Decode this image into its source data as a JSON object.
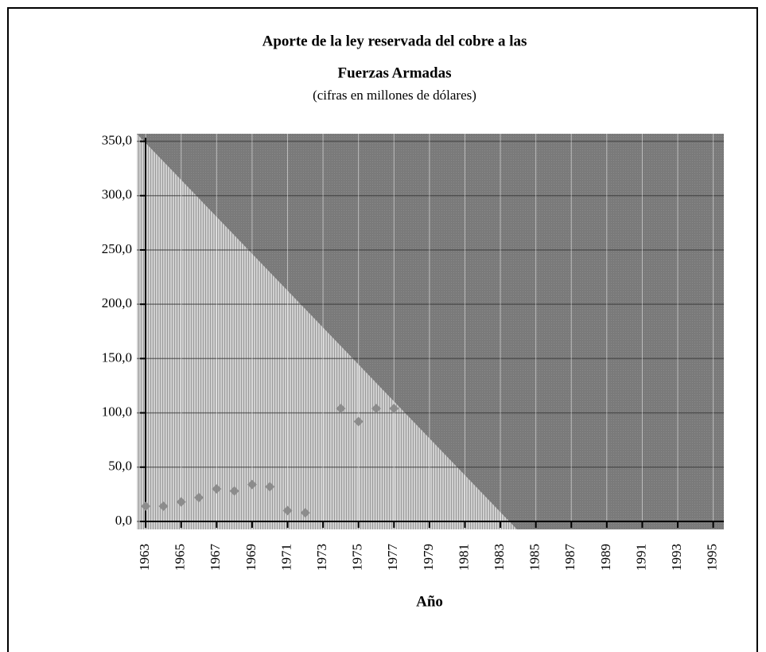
{
  "chart_data": {
    "type": "scatter",
    "title": [
      "Aporte de la ley reservada del cobre a las",
      "Fuerzas Armadas"
    ],
    "subtitle": "(cifras en millones de dólares)",
    "x_label": "Año",
    "series": [
      {
        "color": "#8c8c8c",
        "x": [
          1963,
          1964,
          1965,
          1966,
          1967,
          1968,
          1969,
          1970,
          1971,
          1972,
          1974,
          1975,
          1976,
          1977
        ],
        "values": [
          14,
          14,
          18,
          22,
          30,
          28,
          34,
          32,
          10,
          8,
          104,
          92,
          104,
          104
        ]
      }
    ],
    "xlim": [
      1962.5,
      1995.6
    ],
    "xticks": [
      1963,
      1965,
      1967,
      1969,
      1971,
      1973,
      1975,
      1977,
      1979,
      1981,
      1983,
      1985,
      1987,
      1989,
      1991,
      1993,
      1995
    ],
    "ylim": [
      0,
      357
    ],
    "yticks": [
      {
        "value": 0,
        "label": "0,0"
      },
      {
        "value": 50,
        "label": "50,0"
      },
      {
        "value": 100,
        "label": "100,0"
      },
      {
        "value": 150,
        "label": "150,0"
      },
      {
        "value": 200,
        "label": "200,0"
      },
      {
        "value": 250,
        "label": "250,0"
      },
      {
        "value": 300,
        "label": "300,0"
      },
      {
        "value": 350,
        "label": "350,0"
      }
    ],
    "grid": true
  }
}
